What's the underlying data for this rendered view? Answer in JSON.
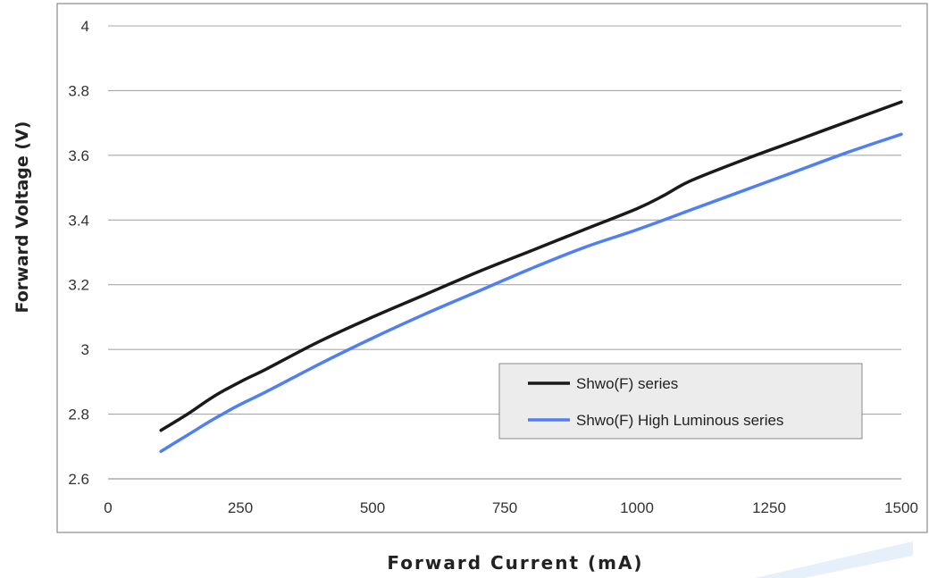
{
  "chart_data": {
    "type": "line",
    "xlabel": "Forward Current (mA)",
    "ylabel": "Forward Voltage (V)",
    "xlim": [
      0,
      1500
    ],
    "ylim": [
      2.6,
      4
    ],
    "xticks": [
      0,
      250,
      500,
      750,
      1000,
      1250,
      1500
    ],
    "yticks": [
      2.6,
      2.8,
      3,
      3.2,
      3.4,
      3.6,
      3.8,
      4
    ],
    "ytick_labels": [
      "2.6",
      "2.8",
      "3",
      "3.2",
      "3.4",
      "3.6",
      "3.8",
      "4"
    ],
    "grid": "horizontal",
    "legend_position": "lower-right",
    "series": [
      {
        "name": "Shwo(F) series",
        "color": "#1a1a1a",
        "points": [
          [
            100,
            2.75
          ],
          [
            150,
            2.8
          ],
          [
            200,
            2.855
          ],
          [
            250,
            2.9
          ],
          [
            300,
            2.94
          ],
          [
            400,
            3.025
          ],
          [
            500,
            3.1
          ],
          [
            600,
            3.17
          ],
          [
            700,
            3.24
          ],
          [
            800,
            3.305
          ],
          [
            900,
            3.37
          ],
          [
            1000,
            3.435
          ],
          [
            1050,
            3.475
          ],
          [
            1100,
            3.52
          ],
          [
            1200,
            3.585
          ],
          [
            1300,
            3.645
          ],
          [
            1400,
            3.705
          ],
          [
            1500,
            3.765
          ]
        ]
      },
      {
        "name": "Shwo(F) High Luminous series",
        "color": "#4f7ef5",
        "points": [
          [
            100,
            2.685
          ],
          [
            150,
            2.735
          ],
          [
            200,
            2.785
          ],
          [
            250,
            2.83
          ],
          [
            300,
            2.87
          ],
          [
            400,
            2.955
          ],
          [
            500,
            3.035
          ],
          [
            600,
            3.11
          ],
          [
            700,
            3.18
          ],
          [
            800,
            3.25
          ],
          [
            900,
            3.315
          ],
          [
            1000,
            3.37
          ],
          [
            1100,
            3.43
          ],
          [
            1200,
            3.49
          ],
          [
            1300,
            3.55
          ],
          [
            1400,
            3.61
          ],
          [
            1500,
            3.665
          ]
        ]
      }
    ]
  }
}
